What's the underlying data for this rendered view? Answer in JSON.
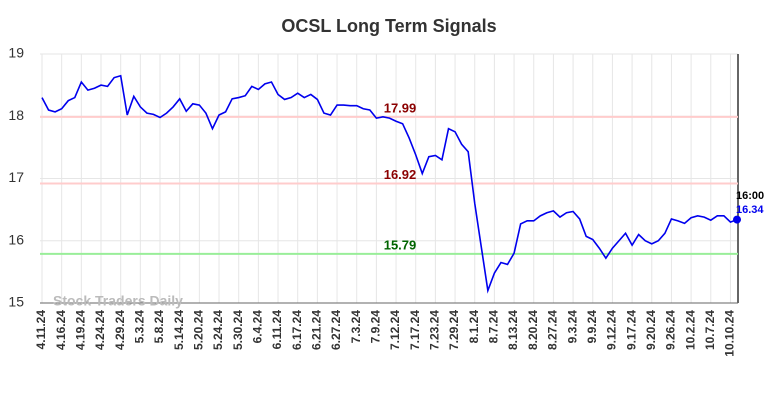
{
  "chart_data": {
    "type": "line",
    "title": "OCSL Long Term Signals",
    "watermark": "Stock Traders Daily",
    "categories": [
      "4.11.24",
      null,
      null,
      "4.16.24",
      null,
      null,
      "4.19.24",
      null,
      null,
      "4.24.24",
      null,
      null,
      "4.29.24",
      null,
      null,
      "5.3.24",
      null,
      null,
      "5.8.24",
      null,
      null,
      "5.14.24",
      null,
      null,
      "5.20.24",
      null,
      null,
      "5.24.24",
      null,
      null,
      "5.30.24",
      null,
      null,
      "6.4.24",
      null,
      null,
      "6.11.24",
      null,
      null,
      "6.17.24",
      null,
      null,
      "6.21.24",
      null,
      null,
      "6.27.24",
      null,
      null,
      "7.3.24",
      null,
      null,
      "7.9.24",
      null,
      null,
      "7.12.24",
      null,
      null,
      "7.17.24",
      null,
      null,
      "7.23.24",
      null,
      null,
      "7.29.24",
      null,
      null,
      "8.1.24",
      null,
      null,
      "8.7.24",
      null,
      null,
      "8.13.24",
      null,
      null,
      "8.20.24",
      null,
      null,
      "8.27.24",
      null,
      null,
      "9.3.24",
      null,
      null,
      "9.9.24",
      null,
      null,
      "9.12.24",
      null,
      null,
      "9.17.24",
      null,
      null,
      "9.20.24",
      null,
      null,
      "9.26.24",
      null,
      null,
      "10.2.24",
      null,
      null,
      "10.7.24",
      null,
      null,
      "10.10.24",
      null
    ],
    "values": [
      18.3,
      18.1,
      18.07,
      18.12,
      18.25,
      18.3,
      18.55,
      18.42,
      18.45,
      18.5,
      18.48,
      18.62,
      18.65,
      18.02,
      18.32,
      18.15,
      18.05,
      18.03,
      17.98,
      18.05,
      18.15,
      18.28,
      18.08,
      18.2,
      18.18,
      18.05,
      17.8,
      18.02,
      18.07,
      18.28,
      18.3,
      18.33,
      18.48,
      18.43,
      18.52,
      18.55,
      18.35,
      18.27,
      18.3,
      18.37,
      18.3,
      18.35,
      18.27,
      18.05,
      18.02,
      18.18,
      18.18,
      18.17,
      18.17,
      18.12,
      18.1,
      17.97,
      17.99,
      17.97,
      17.92,
      17.88,
      17.65,
      17.38,
      17.08,
      17.35,
      17.37,
      17.3,
      17.8,
      17.75,
      17.55,
      17.43,
      16.6,
      15.9,
      15.2,
      15.48,
      15.65,
      15.62,
      15.8,
      16.27,
      16.32,
      16.32,
      16.4,
      16.45,
      16.48,
      16.38,
      16.45,
      16.47,
      16.35,
      16.07,
      16.02,
      15.88,
      15.72,
      15.88,
      16.0,
      16.12,
      15.93,
      16.1,
      16.0,
      15.95,
      16.0,
      16.12,
      16.35,
      16.32,
      16.28,
      16.37,
      16.4,
      16.38,
      16.33,
      16.4,
      16.4,
      16.3,
      16.34
    ],
    "color": "#0000ee",
    "last_point_label": "16:00",
    "reference_lines": [
      {
        "value": 17.99,
        "color": "#ffcccc",
        "label_color": "#8b0000"
      },
      {
        "value": 16.92,
        "color": "#ffcccc",
        "label_color": "#8b0000"
      },
      {
        "value": 15.79,
        "color": "#99ee99",
        "label_color": "#006400"
      }
    ],
    "ylim": [
      15,
      19
    ],
    "yticks": [
      15,
      16,
      17,
      18,
      19
    ],
    "grid": true
  }
}
